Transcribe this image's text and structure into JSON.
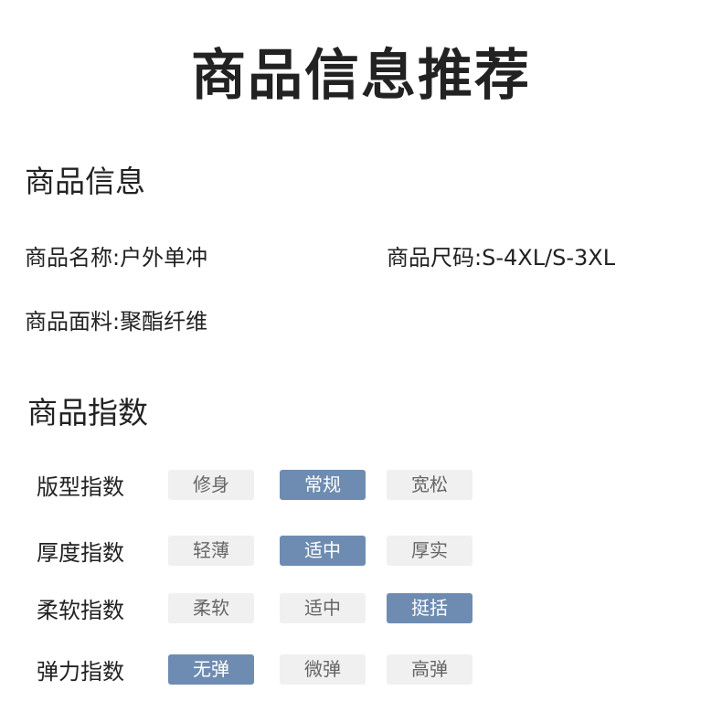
{
  "title": "商品信息推荐",
  "info_section": {
    "heading": "商品信息",
    "name": "商品名称:户外单冲",
    "size": "商品尺码:S-4XL/S-3XL",
    "fabric": "商品面料:聚酯纤维"
  },
  "index_section": {
    "heading": "商品指数",
    "rows": [
      {
        "label": "版型指数",
        "options": [
          "修身",
          "常规",
          "宽松"
        ],
        "selected": 1
      },
      {
        "label": "厚度指数",
        "options": [
          "轻薄",
          "适中",
          "厚实"
        ],
        "selected": 1
      },
      {
        "label": "柔软指数",
        "options": [
          "柔软",
          "适中",
          "挺括"
        ],
        "selected": 2
      },
      {
        "label": "弹力指数",
        "options": [
          "无弹",
          "微弹",
          "高弹"
        ],
        "selected": 0
      }
    ]
  },
  "colors": {
    "selected": "#6e8cb1",
    "unselected": "#f0f0f0"
  }
}
